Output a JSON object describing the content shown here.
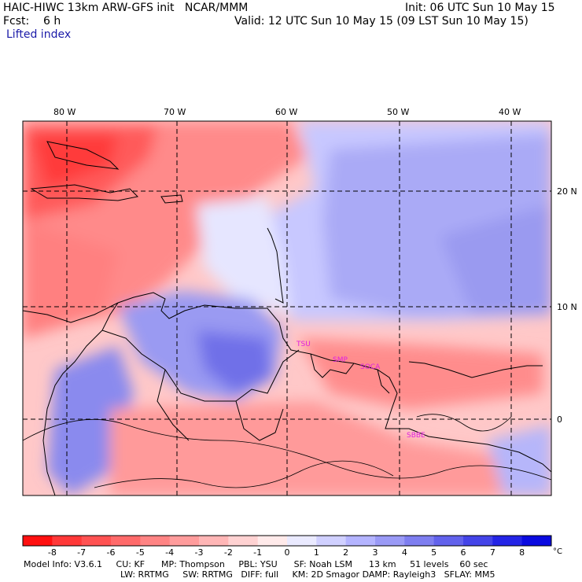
{
  "header": {
    "title": "HAIC-HIWC 13km ARW-GFS init   NCAR/MMM",
    "init": "Init: 06 UTC Sun 10 May 15",
    "fcst": "Fcst:    6 h",
    "valid": "Valid: 12 UTC Sun 10 May 15 (09 LST Sun 10 May 15)",
    "field": "Lifted index"
  },
  "map": {
    "lon_labels": [
      "80 W",
      "70 W",
      "60 W",
      "50 W",
      "40 W"
    ],
    "lat_labels": [
      "20 N",
      "10 N",
      "0"
    ],
    "stations": [
      "TSU",
      "SMP",
      "SOCA",
      "SBBE"
    ],
    "station_color": "#e020e0"
  },
  "colorbar": {
    "ticks": [
      "-8",
      "-7",
      "-6",
      "-5",
      "-4",
      "-3",
      "-2",
      "-1",
      "0",
      "1",
      "2",
      "3",
      "4",
      "5",
      "6",
      "7",
      "8"
    ],
    "unit": "°C",
    "colors": [
      "#ff1010",
      "#ff3838",
      "#ff5252",
      "#ff6a6a",
      "#ff8484",
      "#ff9c9c",
      "#ffb6b6",
      "#ffd2d2",
      "#ffeaea",
      "#eaeaff",
      "#d0d0ff",
      "#b4b4ff",
      "#9a9af6",
      "#7e7ef0",
      "#6262ec",
      "#4444e8",
      "#2424e6",
      "#0a0ae0"
    ]
  },
  "footer": {
    "line1": "Model Info: V3.6.1     CU: KF      MP: Thompson     PBL: YSU      SF: Noah LSM      13 km     51 levels    60 sec",
    "line2": "LW: RRTMG     SW: RRTMG   DIFF: full     KM: 2D Smagor DAMP: Rayleigh3   SFLAY: MM5"
  }
}
